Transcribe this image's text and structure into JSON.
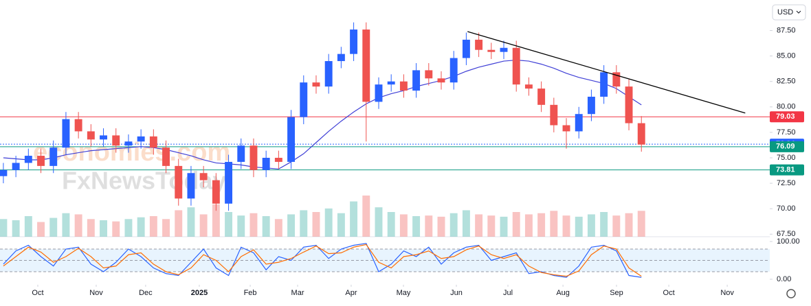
{
  "chart_data": {
    "type": "candlestick",
    "currency": "USD",
    "watermark": [
      "economies.com",
      "FxNewsToday"
    ],
    "up_color": "#2962ff",
    "down_color": "#ef5350",
    "open": [
      73.2,
      73.8,
      74.5,
      75.2,
      74.2,
      76.0,
      78.8,
      77.6,
      76.8,
      77.2,
      76.2,
      76.6,
      77.1,
      76.0,
      74.2,
      71.0,
      73.5,
      72.8,
      70.5,
      74.6,
      76.2,
      73.8,
      75.0,
      74.6,
      79.0,
      82.4,
      82.0,
      84.5,
      85.2,
      87.6,
      80.5,
      82.2,
      82.5,
      81.6,
      83.6,
      82.8,
      82.4,
      84.8,
      86.6,
      85.6,
      85.4,
      85.8,
      82.2,
      81.8,
      80.2,
      78.2,
      77.6,
      79.3,
      81.0,
      83.4,
      82.0,
      78.4
    ],
    "high": [
      74.5,
      75.2,
      75.9,
      75.9,
      76.7,
      79.5,
      79.5,
      78.3,
      77.9,
      77.9,
      77.3,
      77.8,
      77.8,
      76.7,
      74.9,
      74.2,
      74.2,
      73.5,
      75.3,
      76.9,
      76.9,
      75.7,
      75.7,
      79.7,
      83.1,
      83.1,
      85.2,
      85.9,
      88.3,
      88.3,
      82.9,
      83.2,
      83.2,
      84.3,
      84.3,
      83.5,
      85.5,
      87.3,
      87.3,
      86.3,
      86.5,
      86.5,
      82.9,
      82.5,
      80.9,
      78.9,
      80.0,
      81.7,
      84.1,
      84.1,
      82.7,
      79.1
    ],
    "low": [
      72.5,
      73.1,
      73.8,
      73.5,
      73.5,
      75.3,
      76.9,
      76.1,
      76.1,
      75.5,
      75.5,
      75.9,
      75.3,
      73.5,
      70.3,
      70.3,
      72.1,
      69.8,
      69.8,
      73.9,
      73.1,
      73.1,
      73.9,
      73.9,
      78.3,
      81.3,
      81.3,
      83.8,
      84.5,
      76.6,
      79.8,
      81.5,
      80.9,
      80.9,
      82.1,
      81.7,
      81.7,
      84.1,
      84.9,
      84.7,
      84.7,
      81.5,
      81.1,
      79.5,
      77.5,
      75.9,
      76.9,
      78.6,
      80.3,
      81.3,
      77.7,
      75.6
    ],
    "close": [
      73.8,
      74.5,
      75.2,
      74.2,
      76.0,
      78.8,
      77.6,
      76.8,
      77.2,
      76.2,
      76.6,
      77.1,
      76.0,
      74.2,
      71.0,
      73.5,
      72.8,
      70.5,
      74.6,
      76.2,
      73.8,
      75.0,
      74.6,
      79.0,
      82.4,
      82.0,
      84.5,
      85.2,
      87.6,
      80.5,
      82.2,
      82.5,
      81.6,
      83.6,
      82.8,
      82.4,
      84.8,
      86.6,
      85.6,
      85.4,
      85.8,
      82.2,
      81.8,
      80.2,
      78.2,
      77.6,
      79.3,
      81.0,
      83.4,
      82.0,
      78.4,
      76.3
    ],
    "volume": [
      30,
      28,
      35,
      25,
      32,
      40,
      38,
      30,
      28,
      26,
      30,
      33,
      35,
      30,
      45,
      50,
      38,
      55,
      42,
      36,
      40,
      35,
      30,
      38,
      45,
      42,
      48,
      40,
      60,
      70,
      50,
      42,
      38,
      35,
      36,
      34,
      40,
      45,
      38,
      36,
      34,
      42,
      38,
      40,
      44,
      36,
      34,
      38,
      42,
      36,
      40,
      44
    ],
    "ma": {
      "color": "#3f3fd6",
      "values": [
        75.0,
        74.9,
        74.8,
        74.8,
        75.0,
        75.3,
        75.5,
        75.7,
        75.8,
        75.9,
        76.0,
        76.1,
        76.0,
        75.8,
        75.5,
        75.2,
        74.8,
        74.5,
        74.4,
        74.3,
        74.1,
        74.0,
        73.9,
        74.6,
        75.4,
        76.5,
        77.6,
        78.6,
        79.5,
        80.3,
        80.9,
        81.3,
        81.6,
        82.0,
        82.3,
        82.6,
        83.0,
        83.5,
        83.9,
        84.2,
        84.5,
        84.6,
        84.5,
        84.2,
        83.8,
        83.3,
        82.9,
        82.6,
        82.3,
        81.8,
        81.0,
        80.2
      ]
    },
    "trendline": {
      "x": [
        37.1,
        59.3
      ],
      "y": [
        87.4,
        79.4
      ]
    },
    "levels": [
      {
        "value": 79.03,
        "color": "#f23645"
      },
      {
        "value": 76.34,
        "color": "#2962ff"
      },
      {
        "value": 76.09,
        "color": "#089981"
      },
      {
        "value": 73.81,
        "color": "#089981"
      }
    ],
    "xlim": [
      -0.27,
      61.26
    ],
    "ylim": [
      67.25,
      90.5
    ],
    "yticks": [
      {
        "value": 67.5,
        "label": "67.50"
      },
      {
        "value": 70,
        "label": "70.00"
      },
      {
        "value": 72.5,
        "label": "72.50"
      },
      {
        "value": 75,
        "label": "75.00"
      },
      {
        "value": 77.5,
        "label": "77.50"
      },
      {
        "value": 80,
        "label": "80.00"
      },
      {
        "value": 82.5,
        "label": "82.50"
      },
      {
        "value": 85,
        "label": "85.00"
      },
      {
        "value": 87.5,
        "label": "87.50"
      }
    ],
    "xticks": [
      {
        "value": 2.75,
        "label": "Oct"
      },
      {
        "value": 7.42,
        "label": "Nov"
      },
      {
        "value": 11.37,
        "label": "Dec"
      },
      {
        "value": 15.66,
        "label": "2025"
      },
      {
        "value": 19.73,
        "label": "Feb"
      },
      {
        "value": 23.52,
        "label": "Mar"
      },
      {
        "value": 27.8,
        "label": "Apr"
      },
      {
        "value": 31.98,
        "label": "May"
      },
      {
        "value": 36.21,
        "label": "Jun"
      },
      {
        "value": 40.33,
        "label": "Jul"
      },
      {
        "value": 44.73,
        "label": "Aug"
      },
      {
        "value": 49.01,
        "label": "Sep"
      },
      {
        "value": 53.19,
        "label": "Oct"
      },
      {
        "value": 57.86,
        "label": "Nov"
      }
    ],
    "stochastic": {
      "ylim": [
        -14.5,
        112.7
      ],
      "yticks": [
        {
          "value": 0,
          "label": "0.00"
        },
        {
          "value": 100,
          "label": "100.00"
        }
      ],
      "bands": [
        20,
        50,
        80
      ],
      "series": [
        {
          "color": "#2962ff",
          "values": [
            40,
            75,
            90,
            60,
            35,
            80,
            85,
            40,
            20,
            45,
            80,
            60,
            30,
            15,
            10,
            45,
            80,
            30,
            10,
            85,
            70,
            25,
            60,
            50,
            85,
            90,
            55,
            80,
            90,
            95,
            20,
            40,
            75,
            60,
            85,
            40,
            70,
            85,
            90,
            50,
            60,
            70,
            15,
            20,
            10,
            5,
            35,
            85,
            90,
            75,
            10,
            5
          ]
        },
        {
          "color": "#ff6d00",
          "values": [
            35,
            60,
            85,
            72,
            45,
            60,
            82,
            60,
            30,
            35,
            65,
            70,
            40,
            20,
            12,
            30,
            65,
            50,
            20,
            60,
            78,
            40,
            45,
            55,
            72,
            88,
            68,
            70,
            85,
            92,
            45,
            30,
            60,
            65,
            75,
            55,
            60,
            78,
            88,
            65,
            55,
            65,
            35,
            18,
            12,
            8,
            22,
            65,
            88,
            80,
            30,
            8
          ]
        }
      ]
    }
  }
}
